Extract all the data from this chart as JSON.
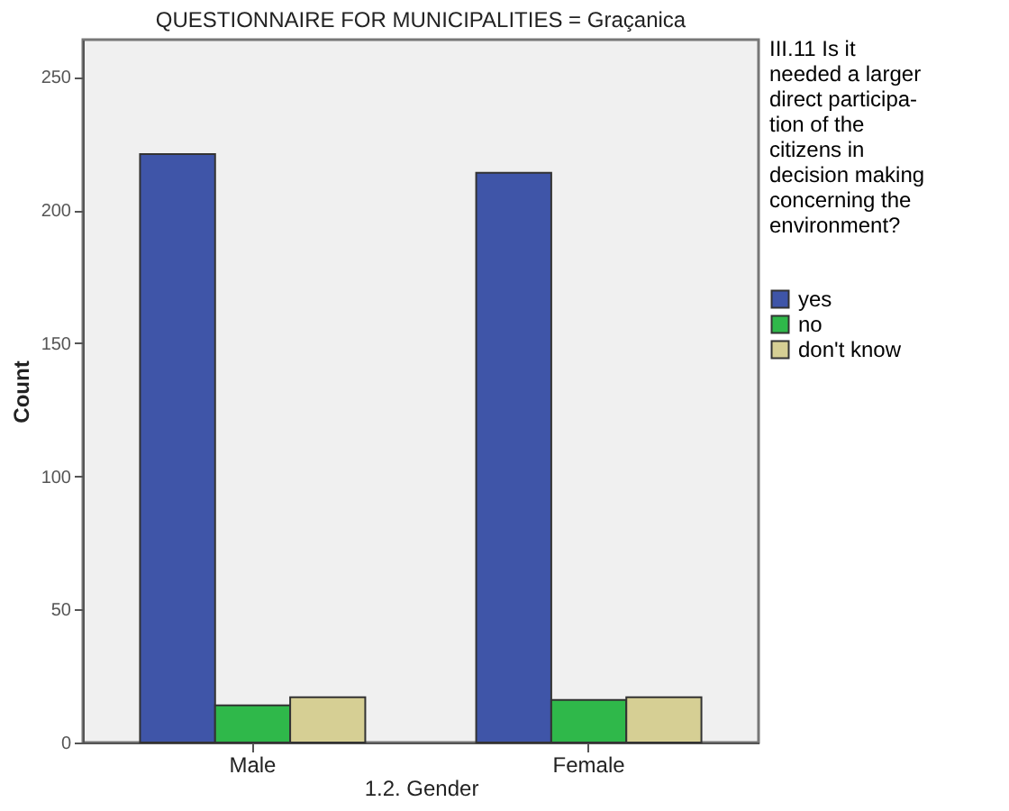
{
  "chart_data": {
    "type": "bar",
    "title": "QUESTIONNAIRE FOR MUNICIPALITIES = Graçanica",
    "xlabel": "1.2. Gender",
    "ylabel": "Count",
    "legend_title": "III.11 Is it\nneeded a larger\ndirect participa-\ntion of the\ncitizens in\ndecision making\nconcerning the\nenvironment?",
    "categories": [
      "Male",
      "Female"
    ],
    "series": [
      {
        "name": "yes",
        "color": "#3f55a8",
        "values": [
          221,
          214
        ]
      },
      {
        "name": "no",
        "color": "#2fb84a",
        "values": [
          14,
          16
        ]
      },
      {
        "name": "don't know",
        "color": "#d6cf94",
        "values": [
          17,
          17
        ]
      }
    ],
    "ylim": [
      0,
      264
    ],
    "yticks": [
      0,
      50,
      100,
      150,
      200,
      250
    ],
    "grid": false,
    "legend": "right"
  }
}
